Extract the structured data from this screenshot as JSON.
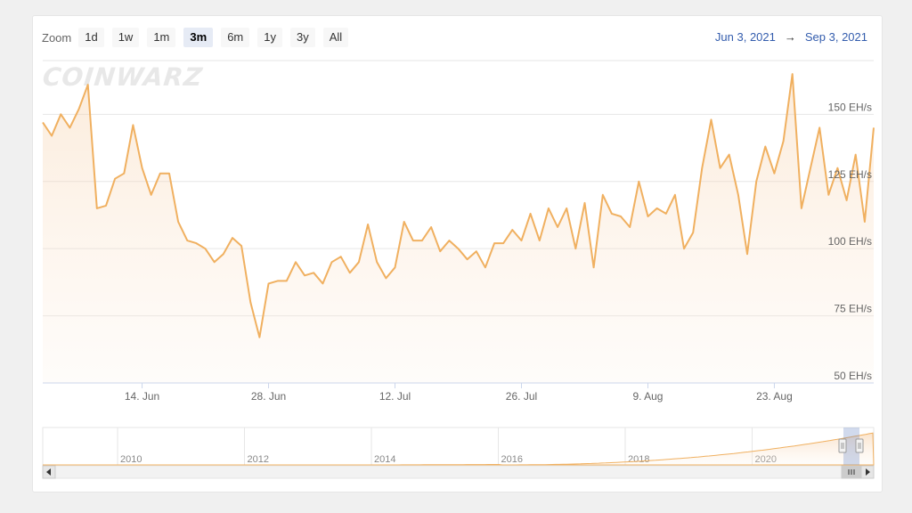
{
  "zoom": {
    "label": "Zoom",
    "buttons": [
      "1d",
      "1w",
      "1m",
      "3m",
      "6m",
      "1y",
      "3y",
      "All"
    ],
    "active": "3m"
  },
  "range": {
    "from": "Jun 3, 2021",
    "arrow": "→",
    "to": "Sep 3, 2021"
  },
  "logo": "COINWARZ",
  "colors": {
    "line": "#f0b060",
    "accent": "#335cad"
  },
  "chart_data": {
    "type": "area",
    "title": "",
    "xlabel": "",
    "ylabel": "",
    "ylim": [
      50,
      170
    ],
    "xlim": [
      "2021-06-03",
      "2021-09-03"
    ],
    "y_ticks": [
      {
        "value": 50,
        "label": "50 EH/s"
      },
      {
        "value": 75,
        "label": "75 EH/s"
      },
      {
        "value": 100,
        "label": "100 EH/s"
      },
      {
        "value": 125,
        "label": "125 EH/s"
      },
      {
        "value": 150,
        "label": "150 EH/s"
      }
    ],
    "x_ticks": [
      {
        "date": "2021-06-14",
        "label": "14. Jun"
      },
      {
        "date": "2021-06-28",
        "label": "28. Jun"
      },
      {
        "date": "2021-07-12",
        "label": "12. Jul"
      },
      {
        "date": "2021-07-26",
        "label": "26. Jul"
      },
      {
        "date": "2021-08-09",
        "label": "9. Aug"
      },
      {
        "date": "2021-08-23",
        "label": "23. Aug"
      }
    ],
    "grid": true,
    "series": [
      {
        "x": [
          "2021-06-03",
          "2021-06-04",
          "2021-06-05",
          "2021-06-06",
          "2021-06-07",
          "2021-06-08",
          "2021-06-09",
          "2021-06-10",
          "2021-06-11",
          "2021-06-12",
          "2021-06-13",
          "2021-06-14",
          "2021-06-15",
          "2021-06-16",
          "2021-06-17",
          "2021-06-18",
          "2021-06-19",
          "2021-06-20",
          "2021-06-21",
          "2021-06-22",
          "2021-06-23",
          "2021-06-24",
          "2021-06-25",
          "2021-06-26",
          "2021-06-27",
          "2021-06-28",
          "2021-06-29",
          "2021-06-30",
          "2021-07-01",
          "2021-07-02",
          "2021-07-03",
          "2021-07-04",
          "2021-07-05",
          "2021-07-06",
          "2021-07-07",
          "2021-07-08",
          "2021-07-09",
          "2021-07-10",
          "2021-07-11",
          "2021-07-12",
          "2021-07-13",
          "2021-07-14",
          "2021-07-15",
          "2021-07-16",
          "2021-07-17",
          "2021-07-18",
          "2021-07-19",
          "2021-07-20",
          "2021-07-21",
          "2021-07-22",
          "2021-07-23",
          "2021-07-24",
          "2021-07-25",
          "2021-07-26",
          "2021-07-27",
          "2021-07-28",
          "2021-07-29",
          "2021-07-30",
          "2021-07-31",
          "2021-08-01",
          "2021-08-02",
          "2021-08-03",
          "2021-08-04",
          "2021-08-05",
          "2021-08-06",
          "2021-08-07",
          "2021-08-08",
          "2021-08-09",
          "2021-08-10",
          "2021-08-11",
          "2021-08-12",
          "2021-08-13",
          "2021-08-14",
          "2021-08-15",
          "2021-08-16",
          "2021-08-17",
          "2021-08-18",
          "2021-08-19",
          "2021-08-20",
          "2021-08-21",
          "2021-08-22",
          "2021-08-23",
          "2021-08-24",
          "2021-08-25",
          "2021-08-26",
          "2021-08-27",
          "2021-08-28",
          "2021-08-29",
          "2021-08-30",
          "2021-08-31",
          "2021-09-01",
          "2021-09-02",
          "2021-09-03"
        ],
        "values": [
          147,
          142,
          150,
          145,
          152,
          161,
          115,
          116,
          126,
          128,
          146,
          130,
          120,
          128,
          128,
          110,
          103,
          102,
          100,
          95,
          98,
          104,
          101,
          80,
          67,
          87,
          88,
          88,
          95,
          90,
          91,
          87,
          95,
          97,
          91,
          95,
          109,
          95,
          89,
          93,
          110,
          103,
          103,
          108,
          99,
          103,
          100,
          96,
          99,
          93,
          102,
          102,
          107,
          103,
          113,
          103,
          115,
          108,
          115,
          100,
          117,
          93,
          120,
          113,
          112,
          108,
          125,
          112,
          115,
          113,
          120,
          100,
          106,
          130,
          148,
          130,
          135,
          120,
          98,
          125,
          138,
          128,
          140,
          165,
          115,
          130,
          145,
          120,
          130,
          118,
          135,
          110,
          145
        ]
      }
    ]
  },
  "navigator": {
    "year_labels": [
      "2010",
      "2012",
      "2014",
      "2016",
      "2018",
      "2020"
    ]
  }
}
